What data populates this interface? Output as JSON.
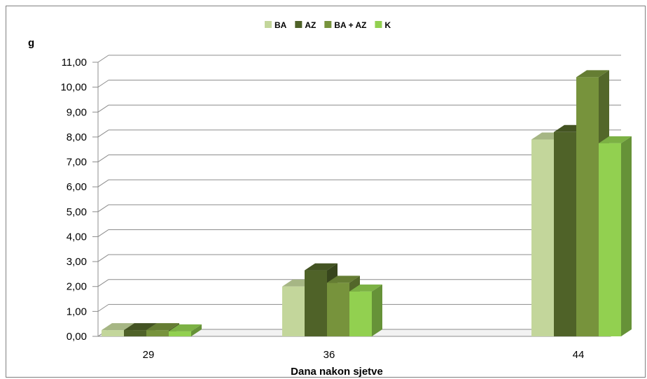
{
  "chart_data": {
    "type": "bar",
    "title": "",
    "xlabel": "Dana nakon sjetve",
    "ylabel": "g",
    "categories": [
      "29",
      "36",
      "44"
    ],
    "series": [
      {
        "name": "BA",
        "color": "#c3d69b",
        "values": [
          0.25,
          2.0,
          7.9
        ]
      },
      {
        "name": "AZ",
        "color": "#4f6228",
        "values": [
          0.25,
          2.65,
          8.2
        ]
      },
      {
        "name": "BA + AZ",
        "color": "#77933c",
        "values": [
          0.25,
          2.15,
          10.4
        ]
      },
      {
        "name": "K",
        "color": "#92d050",
        "values": [
          0.2,
          1.8,
          7.75
        ]
      }
    ],
    "ylim": [
      0,
      11
    ],
    "yticks": [
      "0,00",
      "1,00",
      "2,00",
      "3,00",
      "4,00",
      "5,00",
      "6,00",
      "7,00",
      "8,00",
      "9,00",
      "10,00",
      "11,00"
    ],
    "grid": true,
    "legend_position": "top",
    "style": "3d-clustered-column"
  }
}
